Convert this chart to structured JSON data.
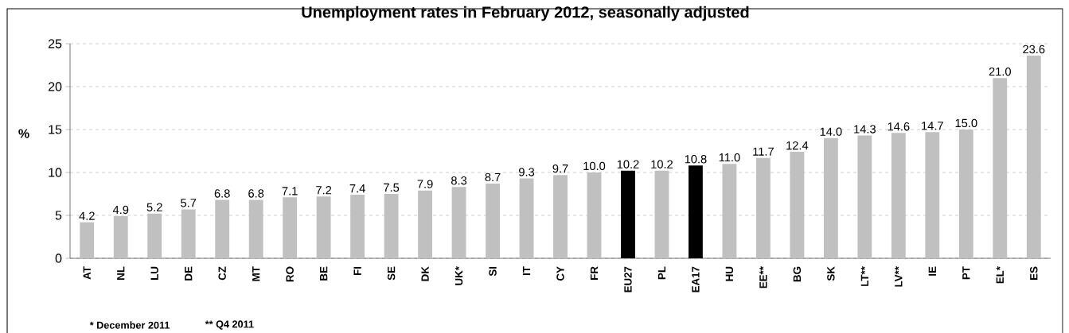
{
  "chart_data": {
    "type": "bar",
    "title": "Unemployment rates in February 2012, seasonally adjusted",
    "ylabel": "%",
    "categories": [
      "AT",
      "NL",
      "LU",
      "DE",
      "CZ",
      "MT",
      "RO",
      "BE",
      "FI",
      "SE",
      "DK",
      "UK*",
      "SI",
      "IT",
      "CY",
      "FR",
      "EU27",
      "PL",
      "EA17",
      "HU",
      "EE**",
      "BG",
      "SK",
      "LT**",
      "LV**",
      "IE",
      "PT",
      "EL*",
      "ES"
    ],
    "values": [
      4.2,
      4.9,
      5.2,
      5.7,
      6.8,
      6.8,
      7.1,
      7.2,
      7.4,
      7.5,
      7.9,
      8.3,
      8.7,
      9.3,
      9.7,
      10.0,
      10.2,
      10.2,
      10.8,
      11.0,
      11.7,
      12.4,
      14.0,
      14.3,
      14.6,
      14.7,
      15.0,
      21.0,
      23.6
    ],
    "value_labels": [
      "4.2",
      "4.9",
      "5.2",
      "5.7",
      "6.8",
      "6.8",
      "7.1",
      "7.2",
      "7.4",
      "7.5",
      "7.9",
      "8.3",
      "8.7",
      "9.3",
      "9.7",
      "10.0",
      "10.2",
      "10.2",
      "10.8",
      "11.0",
      "11.7",
      "12.4",
      "14.0",
      "14.3",
      "14.6",
      "14.7",
      "15.0",
      "21.0",
      "23.6"
    ],
    "colors": [
      "#c0c0c0",
      "#c0c0c0",
      "#c0c0c0",
      "#c0c0c0",
      "#c0c0c0",
      "#c0c0c0",
      "#c0c0c0",
      "#c0c0c0",
      "#c0c0c0",
      "#c0c0c0",
      "#c0c0c0",
      "#c0c0c0",
      "#c0c0c0",
      "#c0c0c0",
      "#c0c0c0",
      "#c0c0c0",
      "#000000",
      "#c0c0c0",
      "#000000",
      "#c0c0c0",
      "#c0c0c0",
      "#c0c0c0",
      "#c0c0c0",
      "#c0c0c0",
      "#c0c0c0",
      "#c0c0c0",
      "#c0c0c0",
      "#c0c0c0",
      "#c0c0c0"
    ],
    "ylim": [
      0,
      25
    ],
    "yticks": [
      0,
      5,
      10,
      15,
      20,
      25
    ],
    "grid": "y",
    "annotations": [
      "* December 2011",
      "** Q4 2011"
    ]
  }
}
